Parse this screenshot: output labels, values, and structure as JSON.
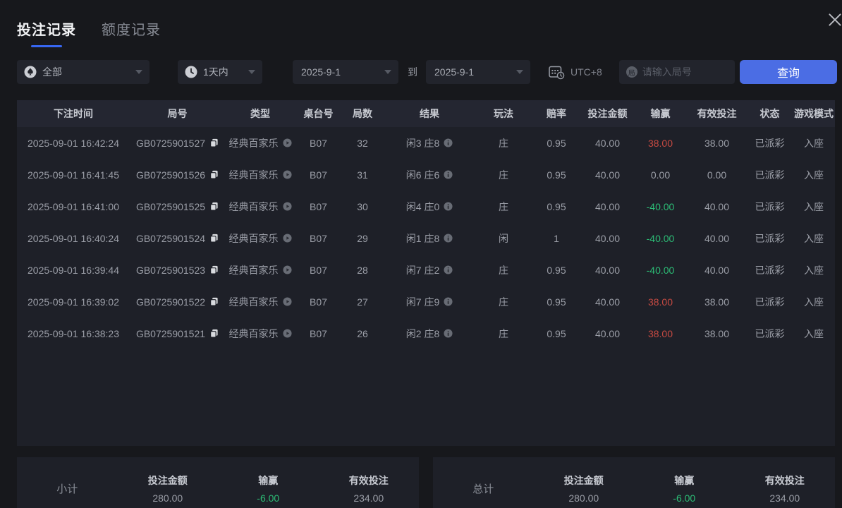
{
  "colors": {
    "accent_blue": "#4b6de4",
    "tab_underline": "#3767f2",
    "win_red": "#c64a42",
    "loss_green": "#2cbd76"
  },
  "tabs": [
    {
      "label": "投注记录",
      "active": true
    },
    {
      "label": "额度记录",
      "active": false
    }
  ],
  "filters": {
    "game_type": "全部",
    "time_range": "1天内",
    "date_from": "2025-9-1",
    "to_label": "到",
    "date_to": "2025-9-1",
    "timezone": "UTC+8",
    "round_icon_char": "局",
    "round_input_placeholder": "请输入局号",
    "query_label": "查询"
  },
  "table": {
    "headers": [
      "下注时间",
      "局号",
      "类型",
      "桌台号",
      "局数",
      "结果",
      "玩法",
      "赔率",
      "投注金额",
      "输赢",
      "有效投注",
      "状态",
      "游戏模式"
    ],
    "rows": [
      {
        "time": "2025-09-01 16:42:24",
        "round_id": "GB0725901527",
        "type": "经典百家乐",
        "table_no": "B07",
        "round_no": "32",
        "result": "闲3 庄8",
        "play": "庄",
        "odds": "0.95",
        "bet": "40.00",
        "win_loss": "38.00",
        "valid_bet": "38.00",
        "status": "已派彩",
        "mode": "入座"
      },
      {
        "time": "2025-09-01 16:41:45",
        "round_id": "GB0725901526",
        "type": "经典百家乐",
        "table_no": "B07",
        "round_no": "31",
        "result": "闲6 庄6",
        "play": "庄",
        "odds": "0.95",
        "bet": "40.00",
        "win_loss": "0.00",
        "valid_bet": "0.00",
        "status": "已派彩",
        "mode": "入座"
      },
      {
        "time": "2025-09-01 16:41:00",
        "round_id": "GB0725901525",
        "type": "经典百家乐",
        "table_no": "B07",
        "round_no": "30",
        "result": "闲4 庄0",
        "play": "庄",
        "odds": "0.95",
        "bet": "40.00",
        "win_loss": "-40.00",
        "valid_bet": "40.00",
        "status": "已派彩",
        "mode": "入座"
      },
      {
        "time": "2025-09-01 16:40:24",
        "round_id": "GB0725901524",
        "type": "经典百家乐",
        "table_no": "B07",
        "round_no": "29",
        "result": "闲1 庄8",
        "play": "闲",
        "odds": "1",
        "bet": "40.00",
        "win_loss": "-40.00",
        "valid_bet": "40.00",
        "status": "已派彩",
        "mode": "入座"
      },
      {
        "time": "2025-09-01 16:39:44",
        "round_id": "GB0725901523",
        "type": "经典百家乐",
        "table_no": "B07",
        "round_no": "28",
        "result": "闲7 庄2",
        "play": "庄",
        "odds": "0.95",
        "bet": "40.00",
        "win_loss": "-40.00",
        "valid_bet": "40.00",
        "status": "已派彩",
        "mode": "入座"
      },
      {
        "time": "2025-09-01 16:39:02",
        "round_id": "GB0725901522",
        "type": "经典百家乐",
        "table_no": "B07",
        "round_no": "27",
        "result": "闲7 庄9",
        "play": "庄",
        "odds": "0.95",
        "bet": "40.00",
        "win_loss": "38.00",
        "valid_bet": "38.00",
        "status": "已派彩",
        "mode": "入座"
      },
      {
        "time": "2025-09-01 16:38:23",
        "round_id": "GB0725901521",
        "type": "经典百家乐",
        "table_no": "B07",
        "round_no": "26",
        "result": "闲2 庄8",
        "play": "庄",
        "odds": "0.95",
        "bet": "40.00",
        "win_loss": "38.00",
        "valid_bet": "38.00",
        "status": "已派彩",
        "mode": "入座"
      }
    ]
  },
  "summaries": [
    {
      "label": "小计",
      "bet_label": "投注金额",
      "bet": "280.00",
      "win_label": "输赢",
      "win": "-6.00",
      "valid_label": "有效投注",
      "valid": "234.00"
    },
    {
      "label": "总计",
      "bet_label": "投注金额",
      "bet": "280.00",
      "win_label": "输赢",
      "win": "-6.00",
      "valid_label": "有效投注",
      "valid": "234.00"
    }
  ]
}
